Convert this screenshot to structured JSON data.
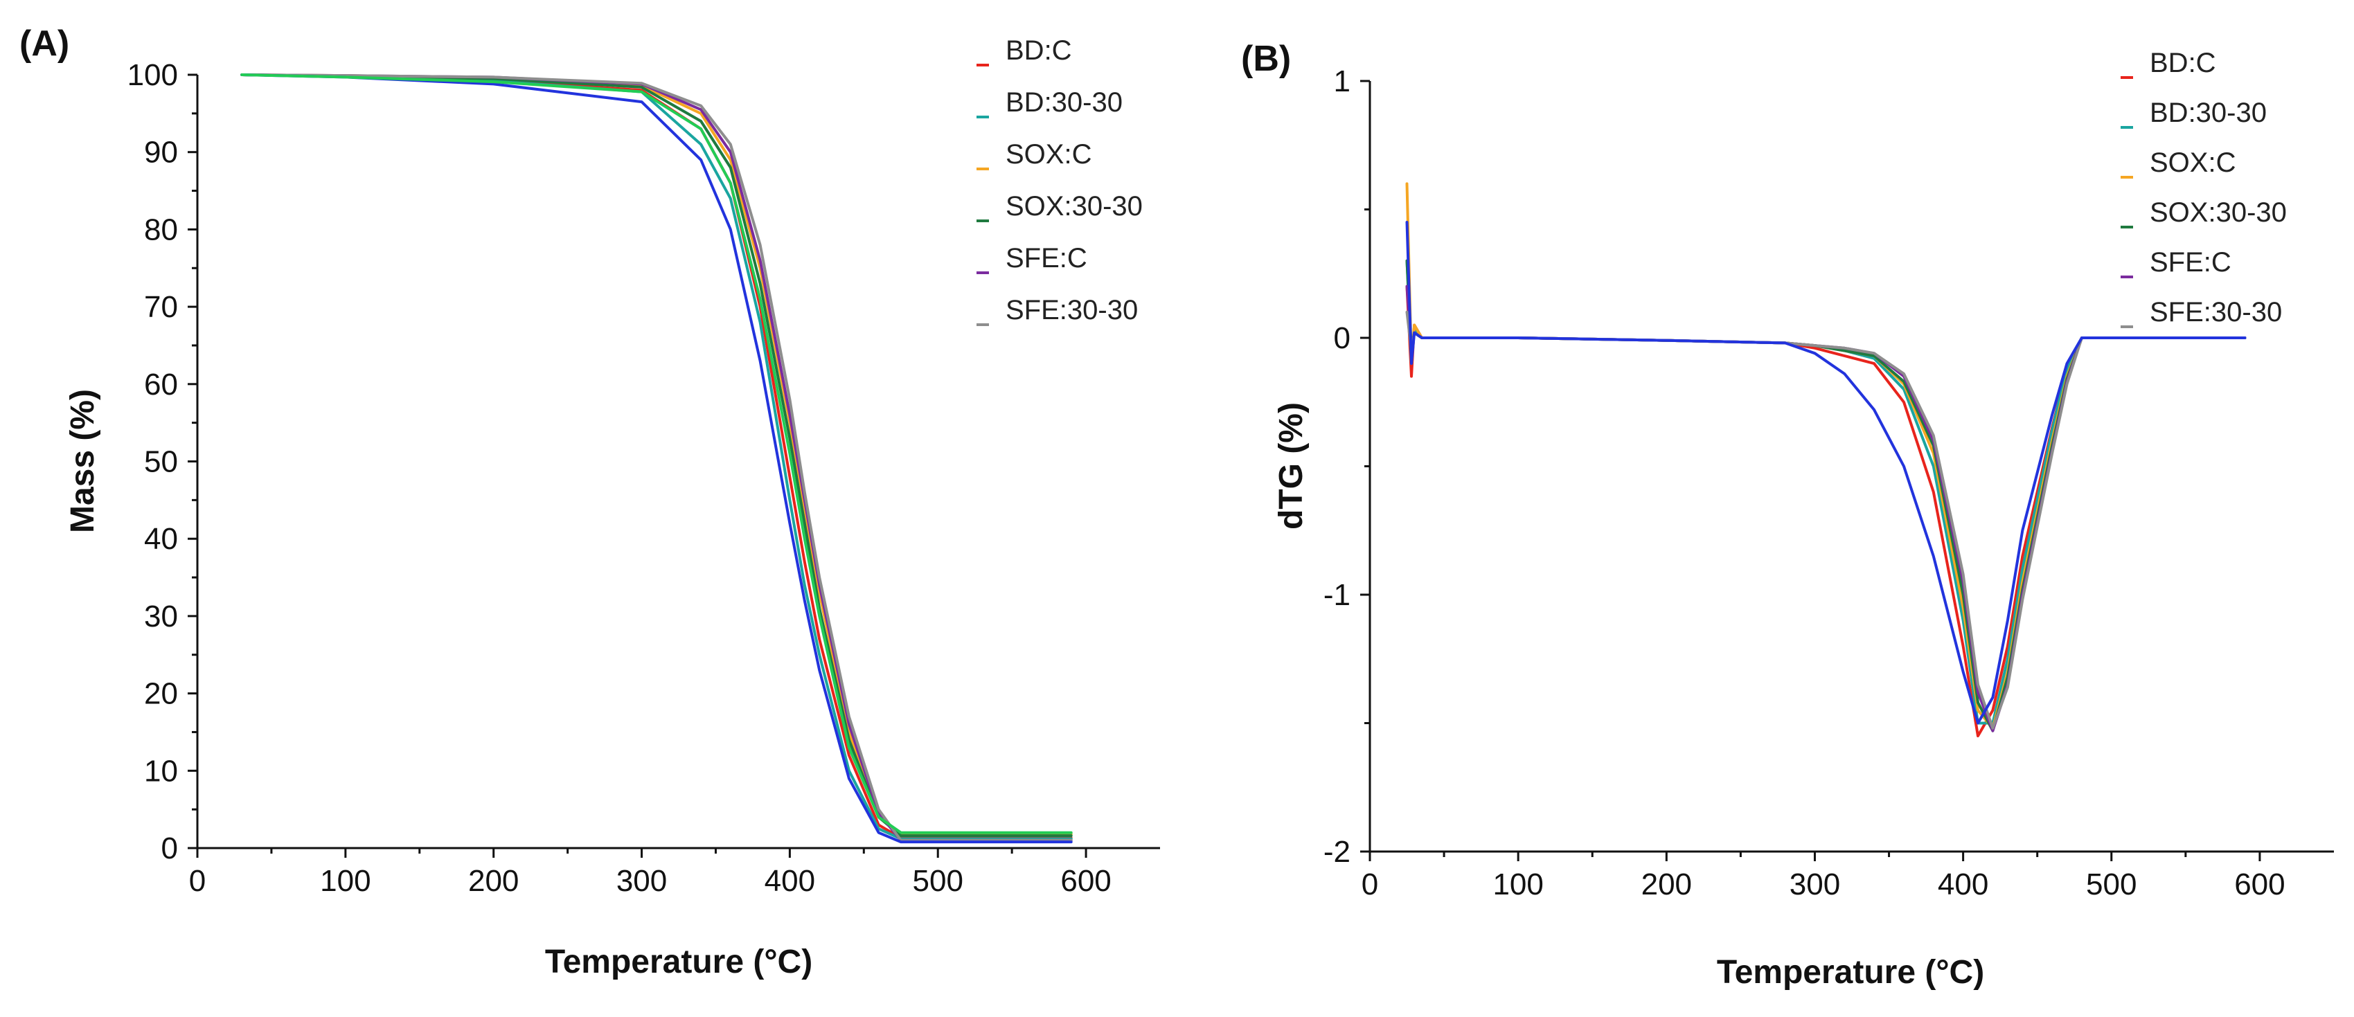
{
  "chart_data": [
    {
      "type": "line",
      "panel_label": "(A)",
      "title": "",
      "xlabel": "Temperature (°C)",
      "ylabel": "Mass (%)",
      "xlim": [
        0,
        650
      ],
      "ylim": [
        0,
        100
      ],
      "xticks": [
        0,
        100,
        200,
        300,
        400,
        500,
        600
      ],
      "yticks": [
        0,
        10,
        20,
        30,
        40,
        50,
        60,
        70,
        80,
        90,
        100
      ],
      "legend_position": "top-right",
      "series": [
        {
          "name": "BD:C",
          "color": "#e8241c",
          "x": [
            30,
            100,
            200,
            300,
            340,
            360,
            380,
            400,
            410,
            420,
            440,
            460,
            475,
            480,
            500,
            590
          ],
          "y": [
            100,
            99.8,
            99.3,
            98,
            93,
            86,
            70,
            48,
            37,
            27,
            12,
            3,
            1.3,
            1.3,
            1.3,
            1.3
          ]
        },
        {
          "name": "BD:30-30",
          "color": "#1aa5a0",
          "x": [
            30,
            100,
            200,
            300,
            340,
            360,
            380,
            400,
            410,
            420,
            440,
            460,
            475,
            480,
            500,
            590
          ],
          "y": [
            100,
            99.8,
            99.2,
            97.8,
            91,
            84,
            68,
            45,
            34,
            25,
            10,
            2.5,
            1.2,
            1.2,
            1.2,
            1.2
          ]
        },
        {
          "name": "SOX:C",
          "color": "#f5a623",
          "x": [
            30,
            100,
            200,
            300,
            340,
            360,
            380,
            400,
            410,
            420,
            440,
            460,
            475,
            480,
            500,
            590
          ],
          "y": [
            100,
            99.9,
            99.6,
            98.6,
            95,
            89,
            75,
            55,
            44,
            33,
            15,
            4,
            1.8,
            1.8,
            1.8,
            1.8
          ]
        },
        {
          "name": "SOX:30-30",
          "color": "#1f7a3f",
          "x": [
            30,
            100,
            200,
            300,
            340,
            360,
            380,
            400,
            410,
            420,
            440,
            460,
            475,
            480,
            500,
            590
          ],
          "y": [
            100,
            99.8,
            99.5,
            98.4,
            94,
            88,
            73,
            53,
            42,
            31,
            14,
            4,
            1.6,
            1.6,
            1.6,
            1.6
          ]
        },
        {
          "name": "SFE:C",
          "color": "#7b2c9e",
          "x": [
            30,
            100,
            200,
            300,
            340,
            360,
            380,
            400,
            410,
            420,
            440,
            460,
            475,
            480,
            500,
            590
          ],
          "y": [
            100,
            99.9,
            99.7,
            98.8,
            95.5,
            90,
            76,
            56,
            45,
            34,
            16,
            4.5,
            1,
            1,
            1,
            1
          ]
        },
        {
          "name": "SFE:30-30",
          "color": "#8e8e8e",
          "x": [
            30,
            100,
            200,
            300,
            340,
            360,
            380,
            400,
            410,
            420,
            440,
            460,
            475,
            480,
            500,
            590
          ],
          "y": [
            100,
            99.9,
            99.7,
            98.9,
            96,
            91,
            78,
            58,
            46,
            35,
            17,
            5,
            1,
            1,
            1,
            1
          ]
        },
        {
          "name": "",
          "color": "#2233dd",
          "x": [
            30,
            100,
            200,
            300,
            340,
            360,
            380,
            400,
            410,
            420,
            440,
            460,
            475,
            480,
            500,
            590
          ],
          "y": [
            100,
            99.7,
            98.8,
            96.5,
            89,
            80,
            63,
            42,
            32,
            23,
            9,
            2,
            0.8,
            0.8,
            0.8,
            0.8
          ]
        },
        {
          "name": "",
          "color": "#22cc55",
          "x": [
            30,
            100,
            200,
            300,
            340,
            360,
            380,
            400,
            410,
            420,
            440,
            460,
            475,
            480,
            500,
            590
          ],
          "y": [
            100,
            99.7,
            99.1,
            97.8,
            93,
            86,
            71,
            51,
            40,
            30,
            13,
            4,
            2,
            2,
            2,
            2
          ]
        }
      ]
    },
    {
      "type": "line",
      "panel_label": "(B)",
      "title": "",
      "xlabel": "Temperature (°C)",
      "ylabel": "dTG (%)",
      "xlim": [
        0,
        650
      ],
      "ylim": [
        -2,
        1
      ],
      "xticks": [
        0,
        100,
        200,
        300,
        400,
        500,
        600
      ],
      "yticks": [
        -2,
        -1,
        0,
        1
      ],
      "legend_position": "top-right",
      "series": [
        {
          "name": "BD:C",
          "color": "#e8241c",
          "x": [
            25,
            28,
            30,
            35,
            100,
            200,
            280,
            300,
            320,
            340,
            360,
            380,
            400,
            410,
            420,
            430,
            440,
            460,
            470,
            480,
            500,
            590
          ],
          "y": [
            0.2,
            -0.15,
            0.05,
            0,
            0,
            -0.01,
            -0.02,
            -0.04,
            -0.07,
            -0.1,
            -0.25,
            -0.6,
            -1.2,
            -1.55,
            -1.45,
            -1.2,
            -0.85,
            -0.35,
            -0.12,
            0,
            0,
            0
          ]
        },
        {
          "name": "BD:30-30",
          "color": "#1aa5a0",
          "x": [
            25,
            28,
            30,
            35,
            100,
            200,
            280,
            300,
            320,
            340,
            360,
            380,
            400,
            410,
            420,
            430,
            440,
            460,
            470,
            480,
            500,
            590
          ],
          "y": [
            0.3,
            -0.1,
            0.03,
            0,
            0,
            -0.01,
            -0.02,
            -0.03,
            -0.05,
            -0.08,
            -0.2,
            -0.5,
            -1.1,
            -1.5,
            -1.5,
            -1.25,
            -0.9,
            -0.36,
            -0.12,
            0,
            0,
            0
          ]
        },
        {
          "name": "SOX:C",
          "color": "#f5a623",
          "x": [
            25,
            28,
            30,
            35,
            100,
            200,
            280,
            300,
            320,
            340,
            360,
            380,
            400,
            410,
            420,
            430,
            440,
            460,
            470,
            480,
            500,
            590
          ],
          "y": [
            0.6,
            -0.1,
            0.05,
            0,
            0,
            -0.01,
            -0.02,
            -0.03,
            -0.05,
            -0.07,
            -0.18,
            -0.45,
            -1.05,
            -1.45,
            -1.52,
            -1.3,
            -0.95,
            -0.4,
            -0.15,
            0,
            0,
            0
          ]
        },
        {
          "name": "SOX:30-30",
          "color": "#1f7a3f",
          "x": [
            25,
            28,
            30,
            35,
            100,
            200,
            280,
            300,
            320,
            340,
            360,
            380,
            400,
            410,
            420,
            430,
            440,
            460,
            470,
            480,
            500,
            590
          ],
          "y": [
            0.3,
            -0.05,
            0.02,
            0,
            0,
            -0.01,
            -0.02,
            -0.03,
            -0.05,
            -0.07,
            -0.17,
            -0.42,
            -1.0,
            -1.42,
            -1.53,
            -1.32,
            -0.98,
            -0.42,
            -0.16,
            0,
            0,
            0
          ]
        },
        {
          "name": "SFE:C",
          "color": "#7b2c9e",
          "x": [
            25,
            28,
            30,
            35,
            100,
            200,
            280,
            300,
            320,
            340,
            360,
            380,
            400,
            410,
            420,
            430,
            440,
            460,
            470,
            480,
            500,
            590
          ],
          "y": [
            0.2,
            -0.05,
            0.02,
            0,
            0,
            -0.01,
            -0.02,
            -0.03,
            -0.04,
            -0.06,
            -0.15,
            -0.4,
            -0.95,
            -1.38,
            -1.53,
            -1.35,
            -1.0,
            -0.44,
            -0.17,
            0,
            0,
            0
          ]
        },
        {
          "name": "SFE:30-30",
          "color": "#8e8e8e",
          "x": [
            25,
            28,
            30,
            35,
            100,
            200,
            280,
            300,
            320,
            340,
            360,
            380,
            400,
            410,
            420,
            430,
            440,
            460,
            470,
            480,
            500,
            590
          ],
          "y": [
            0.1,
            -0.05,
            0.02,
            0,
            0,
            -0.01,
            -0.02,
            -0.03,
            -0.04,
            -0.06,
            -0.14,
            -0.38,
            -0.92,
            -1.35,
            -1.52,
            -1.36,
            -1.02,
            -0.45,
            -0.18,
            0,
            0,
            0
          ]
        },
        {
          "name": "",
          "color": "#2233dd",
          "x": [
            25,
            28,
            30,
            35,
            100,
            200,
            280,
            300,
            320,
            340,
            360,
            380,
            400,
            410,
            420,
            430,
            440,
            460,
            470,
            480,
            500,
            590
          ],
          "y": [
            0.45,
            -0.1,
            0.02,
            0,
            0,
            -0.01,
            -0.02,
            -0.06,
            -0.14,
            -0.28,
            -0.5,
            -0.85,
            -1.3,
            -1.5,
            -1.4,
            -1.1,
            -0.75,
            -0.3,
            -0.1,
            0,
            0,
            0
          ]
        }
      ]
    }
  ]
}
